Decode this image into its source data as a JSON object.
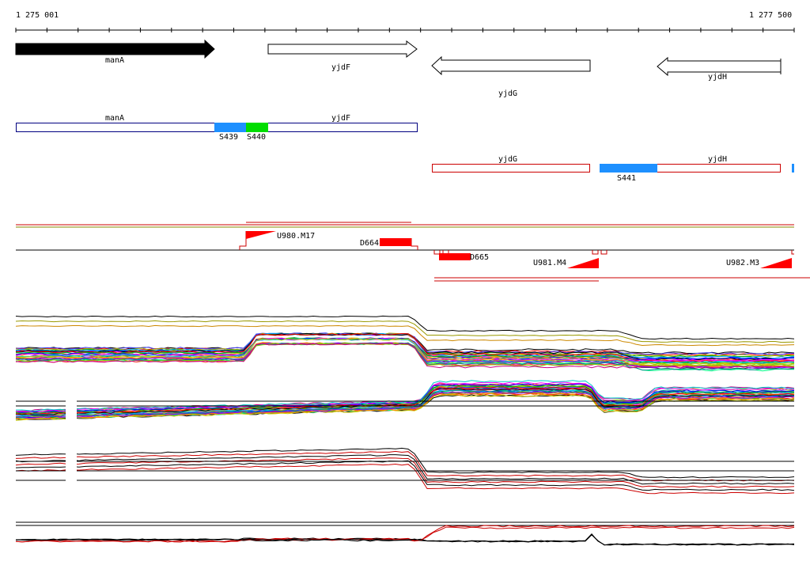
{
  "ruler": {
    "start_label": "1 275 001",
    "end_label": "1 277 500"
  },
  "genes": [
    {
      "name": "manA",
      "strand": "+",
      "style": "filled"
    },
    {
      "name": "yjdF",
      "strand": "+",
      "style": "outline"
    },
    {
      "name": "yjdG",
      "strand": "-",
      "style": "outline"
    },
    {
      "name": "yjdH",
      "strand": "-",
      "style": "outline"
    }
  ],
  "transcripts_top": {
    "labels": [
      "manA",
      "yjdF"
    ],
    "segments": [
      {
        "label": "S439",
        "color": "#1e90ff"
      },
      {
        "label": "S440",
        "color": "#00dd00"
      }
    ]
  },
  "transcripts_bottom": {
    "labels": [
      "yjdG",
      "yjdH"
    ],
    "segments": [
      {
        "label": "S441",
        "color": "#1e90ff"
      }
    ]
  },
  "features": {
    "upstream": [
      "U980.M17",
      "U981.M4",
      "U982.M3"
    ],
    "downstream": [
      "D664",
      "D665"
    ],
    "feature_color": "#ff0000"
  },
  "colors": {
    "gene_outline": "#000000",
    "transcript_top": "#000080",
    "transcript_bottom": "#cc0000",
    "feature": "#ff0000"
  }
}
